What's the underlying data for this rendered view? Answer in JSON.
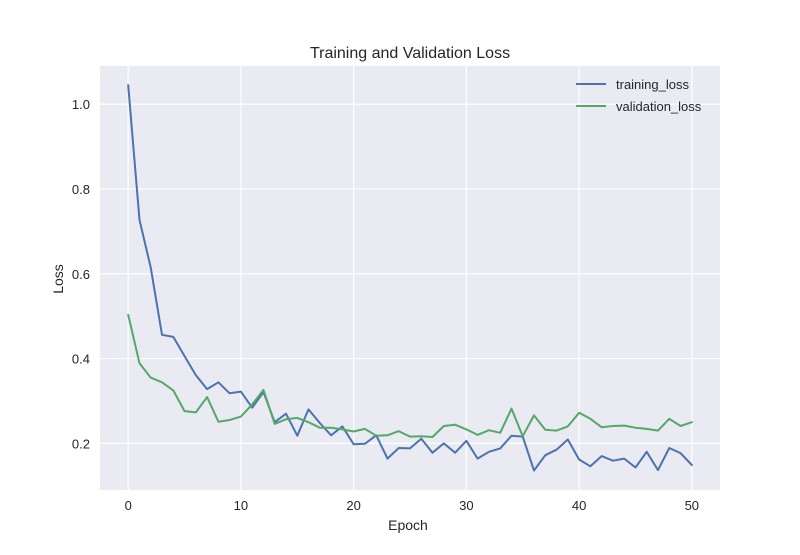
{
  "chart_data": {
    "type": "line",
    "title": "Training and Validation Loss",
    "xlabel": "Epoch",
    "ylabel": "Loss",
    "xlim": [
      -2.5,
      52.5
    ],
    "ylim": [
      0.09,
      1.09
    ],
    "xticks": [
      0,
      10,
      20,
      30,
      40,
      50
    ],
    "xtick_labels": [
      "0",
      "10",
      "20",
      "30",
      "40",
      "50"
    ],
    "yticks": [
      0.2,
      0.4,
      0.6,
      0.8,
      1.0
    ],
    "ytick_labels": [
      "0.2",
      "0.4",
      "0.6",
      "0.8",
      "1.0"
    ],
    "grid": true,
    "legend_position": "top-right",
    "x": [
      0,
      1,
      2,
      3,
      4,
      5,
      6,
      7,
      8,
      9,
      10,
      11,
      12,
      13,
      14,
      15,
      16,
      17,
      18,
      19,
      20,
      21,
      22,
      23,
      24,
      25,
      26,
      27,
      28,
      29,
      30,
      31,
      32,
      33,
      34,
      35,
      36,
      37,
      38,
      39,
      40,
      41,
      42,
      43,
      44,
      45,
      46,
      47,
      48,
      49,
      50
    ],
    "series": [
      {
        "name": "training_loss",
        "color": "#4c72b0",
        "values": [
          1.045,
          0.727,
          0.615,
          0.456,
          0.451,
          0.406,
          0.361,
          0.328,
          0.344,
          0.318,
          0.322,
          0.284,
          0.321,
          0.25,
          0.27,
          0.218,
          0.28,
          0.248,
          0.219,
          0.24,
          0.198,
          0.199,
          0.219,
          0.164,
          0.189,
          0.188,
          0.211,
          0.178,
          0.2,
          0.178,
          0.206,
          0.164,
          0.18,
          0.188,
          0.218,
          0.216,
          0.136,
          0.172,
          0.185,
          0.209,
          0.162,
          0.146,
          0.17,
          0.159,
          0.164,
          0.143,
          0.18,
          0.137,
          0.189,
          0.177,
          0.149
        ]
      },
      {
        "name": "validation_loss",
        "color": "#55a868",
        "values": [
          0.503,
          0.389,
          0.355,
          0.344,
          0.325,
          0.276,
          0.273,
          0.309,
          0.251,
          0.255,
          0.263,
          0.292,
          0.326,
          0.246,
          0.257,
          0.26,
          0.25,
          0.237,
          0.237,
          0.233,
          0.228,
          0.234,
          0.218,
          0.219,
          0.229,
          0.216,
          0.217,
          0.215,
          0.241,
          0.244,
          0.233,
          0.22,
          0.231,
          0.225,
          0.282,
          0.217,
          0.266,
          0.232,
          0.23,
          0.24,
          0.272,
          0.258,
          0.238,
          0.241,
          0.242,
          0.237,
          0.234,
          0.23,
          0.258,
          0.241,
          0.25
        ]
      }
    ]
  }
}
